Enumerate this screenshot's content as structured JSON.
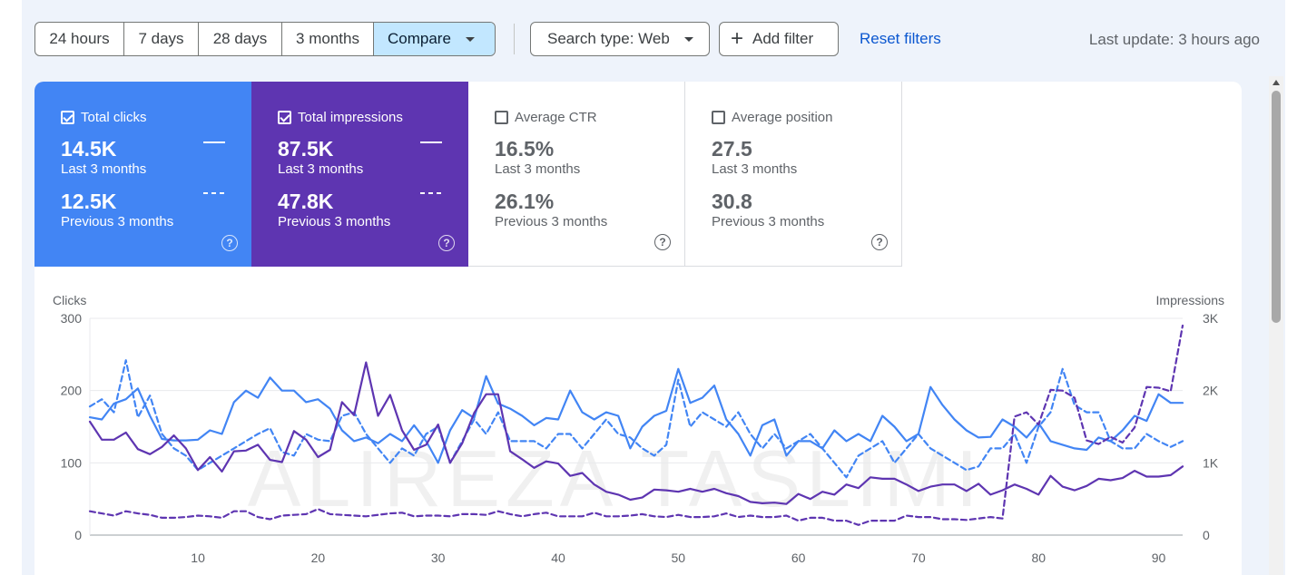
{
  "toolbar": {
    "ranges": [
      "24 hours",
      "7 days",
      "28 days",
      "3 months"
    ],
    "compare_label": "Compare",
    "search_type": "Search type: Web",
    "add_filter": "Add filter",
    "reset_filters": "Reset filters",
    "last_update": "Last update: 3 hours ago"
  },
  "cards": [
    {
      "title": "Total clicks",
      "checked": true,
      "current": "14.5K",
      "current_label": "Last 3 months",
      "previous": "12.5K",
      "previous_label": "Previous 3 months",
      "color": "#4285f4"
    },
    {
      "title": "Total impressions",
      "checked": true,
      "current": "87.5K",
      "current_label": "Last 3 months",
      "previous": "47.8K",
      "previous_label": "Previous 3 months",
      "color": "#5e35b1"
    },
    {
      "title": "Average CTR",
      "checked": false,
      "current": "16.5%",
      "current_label": "Last 3 months",
      "previous": "26.1%",
      "previous_label": "Previous 3 months"
    },
    {
      "title": "Average position",
      "checked": false,
      "current": "27.5",
      "current_label": "Last 3 months",
      "previous": "30.8",
      "previous_label": "Previous 3 months"
    }
  ],
  "icons": {
    "help": "help-circle-icon",
    "checkbox": "checkbox-icon",
    "caret": "caret-down-icon",
    "plus": "plus-icon"
  },
  "watermark": "ALIREZA TASLIMI",
  "chart_data": {
    "type": "line",
    "ylabel_left": "Clicks",
    "ylabel_right": "Impressions",
    "y_left_ticks": [
      "0",
      "100",
      "200",
      "300"
    ],
    "y_right_ticks": [
      "0",
      "1K",
      "2K",
      "3K"
    ],
    "ylim_left": [
      0,
      300
    ],
    "ylim_right": [
      0,
      3000
    ],
    "x_ticks": [
      10,
      20,
      30,
      40,
      50,
      60,
      70,
      80,
      90
    ],
    "xlim": [
      1,
      92
    ],
    "grid": true,
    "legend": "none",
    "series": [
      {
        "axis": "left",
        "style": "solid",
        "color": "#4285f4",
        "values": [
          163,
          160,
          182,
          188,
          203,
          165,
          133,
          131,
          131,
          132,
          145,
          140,
          184,
          200,
          190,
          218,
          200,
          200,
          184,
          188,
          175,
          145,
          130,
          135,
          127,
          140,
          130,
          152,
          130,
          100,
          145,
          173,
          162,
          220,
          182,
          175,
          165,
          152,
          162,
          160,
          200,
          170,
          160,
          170,
          165,
          120,
          150,
          165,
          172,
          230,
          183,
          190,
          207,
          160,
          140,
          110,
          152,
          160,
          110,
          130,
          130,
          120,
          145,
          130,
          140,
          130,
          165,
          150,
          130,
          140,
          205,
          180,
          160,
          145,
          135,
          136,
          160,
          150,
          135,
          155,
          130,
          125,
          120,
          118,
          135,
          130,
          145,
          165,
          158,
          195,
          183,
          183
        ]
      },
      {
        "axis": "left",
        "style": "dashed",
        "color": "#4285f4",
        "values": [
          178,
          188,
          170,
          242,
          163,
          193,
          140,
          120,
          110,
          90,
          100,
          110,
          120,
          130,
          140,
          148,
          115,
          110,
          140,
          132,
          130,
          165,
          170,
          140,
          120,
          100,
          120,
          110,
          140,
          150,
          100,
          130,
          160,
          140,
          170,
          130,
          130,
          130,
          120,
          140,
          140,
          120,
          140,
          160,
          140,
          135,
          120,
          110,
          125,
          215,
          150,
          170,
          160,
          150,
          170,
          140,
          120,
          140,
          120,
          130,
          140,
          120,
          100,
          80,
          110,
          120,
          130,
          100,
          120,
          140,
          120,
          110,
          100,
          90,
          95,
          120,
          120,
          140,
          100,
          150,
          170,
          230,
          180,
          170,
          170,
          130,
          120,
          120,
          140,
          130,
          122,
          130
        ]
      },
      {
        "axis": "right",
        "style": "solid",
        "color": "#5e35b1",
        "values": [
          1570,
          1320,
          1320,
          1420,
          1190,
          1120,
          1220,
          1380,
          1200,
          900,
          1080,
          880,
          1160,
          1170,
          1250,
          1040,
          1010,
          1440,
          1320,
          1080,
          1180,
          1840,
          1660,
          2390,
          1650,
          1940,
          1450,
          1180,
          1250,
          1530,
          1000,
          1270,
          1690,
          1950,
          1950,
          1160,
          1050,
          930,
          1020,
          990,
          820,
          860,
          700,
          600,
          560,
          490,
          520,
          630,
          620,
          600,
          640,
          600,
          640,
          580,
          540,
          460,
          440,
          450,
          430,
          570,
          500,
          600,
          560,
          700,
          650,
          800,
          780,
          780,
          700,
          610,
          670,
          700,
          700,
          610,
          710,
          560,
          620,
          700,
          640,
          560,
          820,
          670,
          620,
          680,
          780,
          760,
          790,
          890,
          810,
          810,
          830,
          950
        ]
      },
      {
        "axis": "right",
        "style": "dashed",
        "color": "#5e35b1",
        "values": [
          330,
          300,
          270,
          330,
          300,
          280,
          240,
          240,
          250,
          270,
          260,
          240,
          330,
          330,
          250,
          220,
          270,
          280,
          290,
          360,
          290,
          280,
          270,
          260,
          280,
          300,
          310,
          260,
          270,
          270,
          260,
          290,
          290,
          280,
          330,
          290,
          260,
          290,
          310,
          260,
          260,
          260,
          310,
          260,
          260,
          270,
          290,
          260,
          250,
          280,
          250,
          250,
          260,
          300,
          250,
          270,
          250,
          250,
          270,
          200,
          240,
          240,
          200,
          200,
          140,
          200,
          200,
          200,
          270,
          250,
          250,
          220,
          220,
          210,
          230,
          250,
          230,
          1640,
          1700,
          1530,
          2010,
          2000,
          1900,
          1310,
          1260,
          1360,
          1280,
          1490,
          2050,
          2040,
          1990,
          2900
        ]
      }
    ]
  }
}
